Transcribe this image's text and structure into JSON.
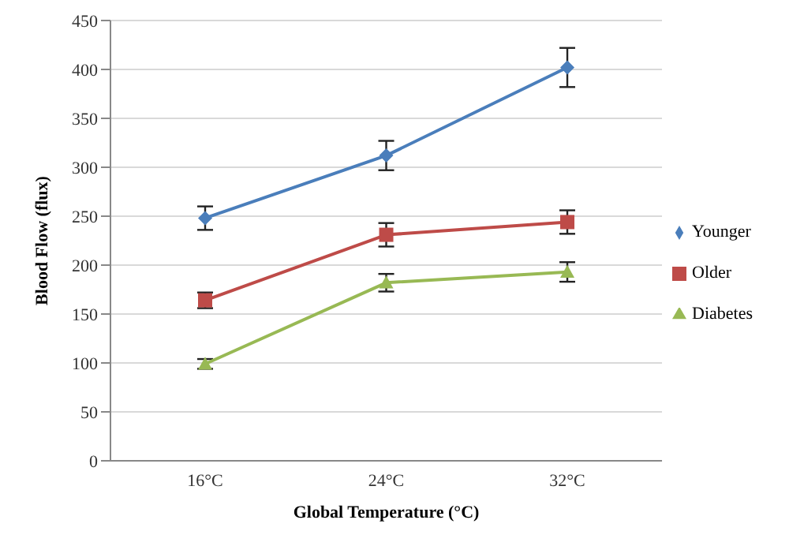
{
  "chart_data": {
    "type": "line",
    "xlabel": "Global Temperature (°C)",
    "ylabel": "Blood Flow (flux)",
    "categories": [
      "16°C",
      "24°C",
      "32°C"
    ],
    "series": [
      {
        "name": "Younger",
        "color": "#4a7ebb",
        "marker": "diamond",
        "values": [
          248,
          312,
          402
        ],
        "errors": [
          12,
          15,
          20
        ]
      },
      {
        "name": "Older",
        "color": "#be4b48",
        "marker": "square",
        "values": [
          164,
          231,
          244
        ],
        "errors": [
          8,
          12,
          12
        ]
      },
      {
        "name": "Diabetes",
        "color": "#98b954",
        "marker": "triangle",
        "values": [
          99,
          182,
          193
        ],
        "errors": [
          5,
          9,
          10
        ]
      }
    ],
    "ylim": [
      0,
      450
    ],
    "yticks": [
      0,
      50,
      100,
      150,
      200,
      250,
      300,
      350,
      400,
      450
    ],
    "grid": "y",
    "legend": "right",
    "line_style": "solid"
  }
}
